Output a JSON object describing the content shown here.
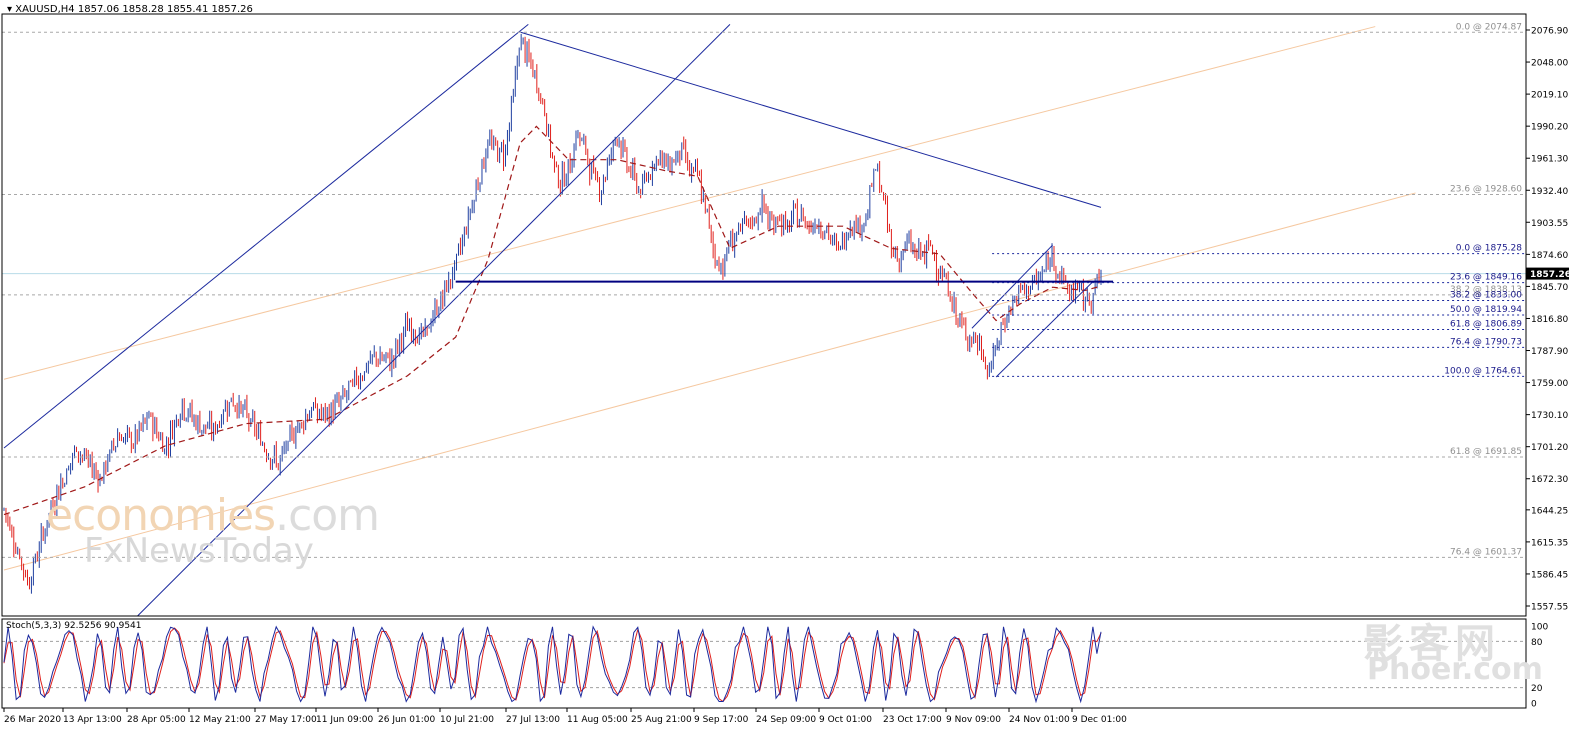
{
  "header": {
    "symbol": "XAUUSD,H4",
    "open": "1857.06",
    "high": "1858.28",
    "low": "1855.41",
    "close": "1857.26"
  },
  "stoch_header": {
    "label": "Stoch(5,3,3)",
    "main": "92.5256",
    "signal": "90.9541"
  },
  "watermark": {
    "line1": "economies",
    "line1_suffix": ".com",
    "line2": "FxNewsToday",
    "line3": "影客网",
    "line4": "Phoer.com"
  },
  "colors": {
    "bull_candle": "#1f3fa0",
    "bear_candle": "#e0201c",
    "moving_average": "#a01818",
    "trend_lines": "#1c2a9e",
    "channel_lines": "#f5c8a0",
    "support_line": "#000080",
    "stoch_main": "#1c2a9e",
    "stoch_signal": "#e0201c",
    "price_badge": "#000000"
  },
  "chart_data": {
    "type": "line",
    "instrument": "XAUUSD",
    "timeframe": "H4",
    "y_range": [
      1557.55,
      2080
    ],
    "y_ticks": [
      "2076.90",
      "2048.00",
      "2019.10",
      "1990.20",
      "1961.30",
      "1932.40",
      "1903.55",
      "1874.60",
      "1845.70",
      "1816.80",
      "1787.90",
      "1759.00",
      "1730.10",
      "1701.20",
      "1672.30",
      "1644.25",
      "1615.35",
      "1586.45",
      "1557.55"
    ],
    "current_price": "1857.26",
    "x_ticks": [
      "26 Mar 2020",
      "13 Apr 13:00",
      "28 Apr 05:00",
      "12 May 21:00",
      "27 May 17:00",
      "11 Jun 09:00",
      "26 Jun 01:00",
      "10 Jul 21:00",
      "27 Jul 13:00",
      "11 Aug 05:00",
      "25 Aug 21:00",
      "9 Sep 17:00",
      "24 Sep 09:00",
      "9 Oct 01:00",
      "23 Oct 17:00",
      "9 Nov 09:00",
      "24 Nov 01:00",
      "9 Dec 01:00"
    ],
    "price_path": [
      [
        0,
        1645
      ],
      [
        3,
        1578
      ],
      [
        6,
        1650
      ],
      [
        9,
        1700
      ],
      [
        12,
        1672
      ],
      [
        14,
        1712
      ],
      [
        16,
        1705
      ],
      [
        18,
        1728
      ],
      [
        20,
        1700
      ],
      [
        22,
        1740
      ],
      [
        24,
        1722
      ],
      [
        26,
        1715
      ],
      [
        28,
        1745
      ],
      [
        30,
        1730
      ],
      [
        32,
        1705
      ],
      [
        34,
        1685
      ],
      [
        36,
        1715
      ],
      [
        38,
        1735
      ],
      [
        40,
        1728
      ],
      [
        42,
        1745
      ],
      [
        44,
        1765
      ],
      [
        46,
        1782
      ],
      [
        48,
        1778
      ],
      [
        50,
        1810
      ],
      [
        52,
        1800
      ],
      [
        54,
        1830
      ],
      [
        56,
        1865
      ],
      [
        58,
        1920
      ],
      [
        60,
        1975
      ],
      [
        62,
        1965
      ],
      [
        63,
        2010
      ],
      [
        64,
        2070
      ],
      [
        65,
        2050
      ],
      [
        66,
        2030
      ],
      [
        67,
        2005
      ],
      [
        68,
        1960
      ],
      [
        69,
        1940
      ],
      [
        70,
        1950
      ],
      [
        71,
        1985
      ],
      [
        72,
        1970
      ],
      [
        73,
        1945
      ],
      [
        74,
        1935
      ],
      [
        75,
        1960
      ],
      [
        76,
        1985
      ],
      [
        77,
        1960
      ],
      [
        78,
        1945
      ],
      [
        79,
        1930
      ],
      [
        80,
        1950
      ],
      [
        81,
        1965
      ],
      [
        82,
        1955
      ],
      [
        83,
        1960
      ],
      [
        84,
        1970
      ],
      [
        85,
        1950
      ],
      [
        86,
        1945
      ],
      [
        87,
        1915
      ],
      [
        88,
        1875
      ],
      [
        89,
        1862
      ],
      [
        90,
        1885
      ],
      [
        91,
        1895
      ],
      [
        92,
        1900
      ],
      [
        93,
        1905
      ],
      [
        94,
        1920
      ],
      [
        95,
        1900
      ],
      [
        96,
        1910
      ],
      [
        97,
        1895
      ],
      [
        98,
        1910
      ],
      [
        99,
        1908
      ],
      [
        100,
        1900
      ],
      [
        101,
        1905
      ],
      [
        102,
        1895
      ],
      [
        103,
        1880
      ],
      [
        104,
        1885
      ],
      [
        105,
        1905
      ],
      [
        106,
        1900
      ],
      [
        107,
        1910
      ],
      [
        108,
        1955
      ],
      [
        109,
        1925
      ],
      [
        110,
        1880
      ],
      [
        111,
        1870
      ],
      [
        112,
        1885
      ],
      [
        113,
        1875
      ],
      [
        114,
        1875
      ],
      [
        115,
        1880
      ],
      [
        116,
        1860
      ],
      [
        117,
        1845
      ],
      [
        118,
        1820
      ],
      [
        119,
        1805
      ],
      [
        120,
        1800
      ],
      [
        121,
        1790
      ],
      [
        122,
        1768
      ],
      [
        123,
        1790
      ],
      [
        124,
        1815
      ],
      [
        125,
        1830
      ],
      [
        126,
        1840
      ],
      [
        127,
        1845
      ],
      [
        128,
        1850
      ],
      [
        129,
        1860
      ],
      [
        130,
        1875
      ],
      [
        131,
        1855
      ],
      [
        132,
        1840
      ],
      [
        133,
        1845
      ],
      [
        134,
        1832
      ],
      [
        135,
        1840
      ],
      [
        136,
        1857
      ]
    ],
    "moving_average_path": [
      [
        0,
        1640
      ],
      [
        10,
        1665
      ],
      [
        20,
        1702
      ],
      [
        30,
        1722
      ],
      [
        40,
        1726
      ],
      [
        50,
        1765
      ],
      [
        56,
        1800
      ],
      [
        60,
        1870
      ],
      [
        64,
        1975
      ],
      [
        66,
        1990
      ],
      [
        70,
        1960
      ],
      [
        76,
        1960
      ],
      [
        82,
        1950
      ],
      [
        86,
        1945
      ],
      [
        90,
        1880
      ],
      [
        96,
        1900
      ],
      [
        104,
        1900
      ],
      [
        110,
        1880
      ],
      [
        116,
        1875
      ],
      [
        120,
        1840
      ],
      [
        123,
        1815
      ],
      [
        126,
        1830
      ],
      [
        130,
        1845
      ],
      [
        134,
        1842
      ],
      [
        136,
        1846
      ]
    ],
    "fibonacci_large": [
      {
        "level": "0.0",
        "price": "2074.87"
      },
      {
        "level": "23.6",
        "price": "1928.60"
      },
      {
        "level": "38.2",
        "price": "1838.13"
      },
      {
        "level": "61.8",
        "price": "1691.85"
      },
      {
        "level": "76.4",
        "price": "1601.37"
      }
    ],
    "fibonacci_small": [
      {
        "level": "0.0",
        "price": "1875.28"
      },
      {
        "level": "23.6",
        "price": "1849.16"
      },
      {
        "level": "38.2",
        "price": "1833.00"
      },
      {
        "level": "50.0",
        "price": "1819.94"
      },
      {
        "level": "61.8",
        "price": "1806.89"
      },
      {
        "level": "76.4",
        "price": "1790.73"
      },
      {
        "level": "100.0",
        "price": "1764.61"
      }
    ],
    "support_level": 1850,
    "trend_lines": [
      {
        "role": "channel-upper",
        "from": [
          0,
          1700
        ],
        "to": [
          65,
          2082
        ]
      },
      {
        "role": "channel-lower",
        "from": [
          14,
          1530
        ],
        "to": [
          90,
          2082
        ]
      },
      {
        "role": "descending-resistance",
        "from": [
          64,
          2075
        ],
        "to": [
          136,
          1917
        ]
      },
      {
        "role": "small-channel-upper",
        "from": [
          120,
          1808
        ],
        "to": [
          130,
          1883
        ]
      },
      {
        "role": "small-channel-lower",
        "from": [
          123,
          1764
        ],
        "to": [
          135,
          1850
        ]
      }
    ],
    "orange_channel": [
      {
        "from": [
          0,
          1762
        ],
        "to": [
          170,
          2080
        ]
      },
      {
        "from": [
          0,
          1590
        ],
        "to": [
          175,
          1930
        ]
      }
    ],
    "stochastic": {
      "name": "Stoch(5,3,3)",
      "main": "92.5256",
      "signal": "90.9541",
      "levels": [
        80,
        20
      ],
      "y_ticks": [
        "100",
        "80",
        "20",
        "0"
      ]
    }
  }
}
